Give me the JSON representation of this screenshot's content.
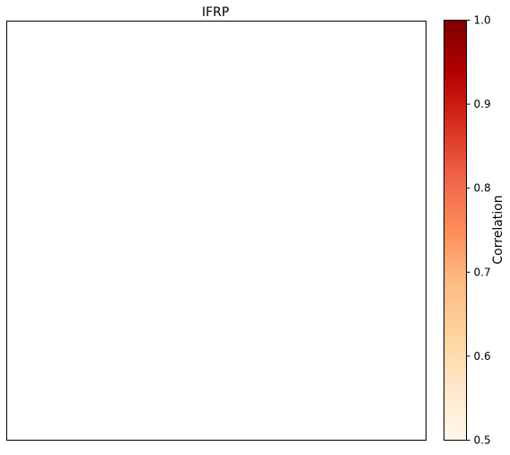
{
  "chart_data": {
    "type": "heatmap",
    "title": "IFRP",
    "xlabel": "",
    "ylabel": "",
    "values": [],
    "grid": false,
    "colorbar": {
      "label": "Correlation",
      "range": [
        0.5,
        1.0
      ],
      "ticks": [
        0.5,
        0.6,
        0.7,
        0.8,
        0.9,
        1.0
      ],
      "tick_labels": [
        "0.5",
        "0.6",
        "0.7",
        "0.8",
        "0.9",
        "1.0"
      ],
      "colormap": "OrRd",
      "colors": [
        "#fff7ec",
        "#fee8c8",
        "#fdd49e",
        "#fdbb84",
        "#fc8d59",
        "#ef6548",
        "#d7301f",
        "#b30000",
        "#7f0000"
      ]
    }
  }
}
